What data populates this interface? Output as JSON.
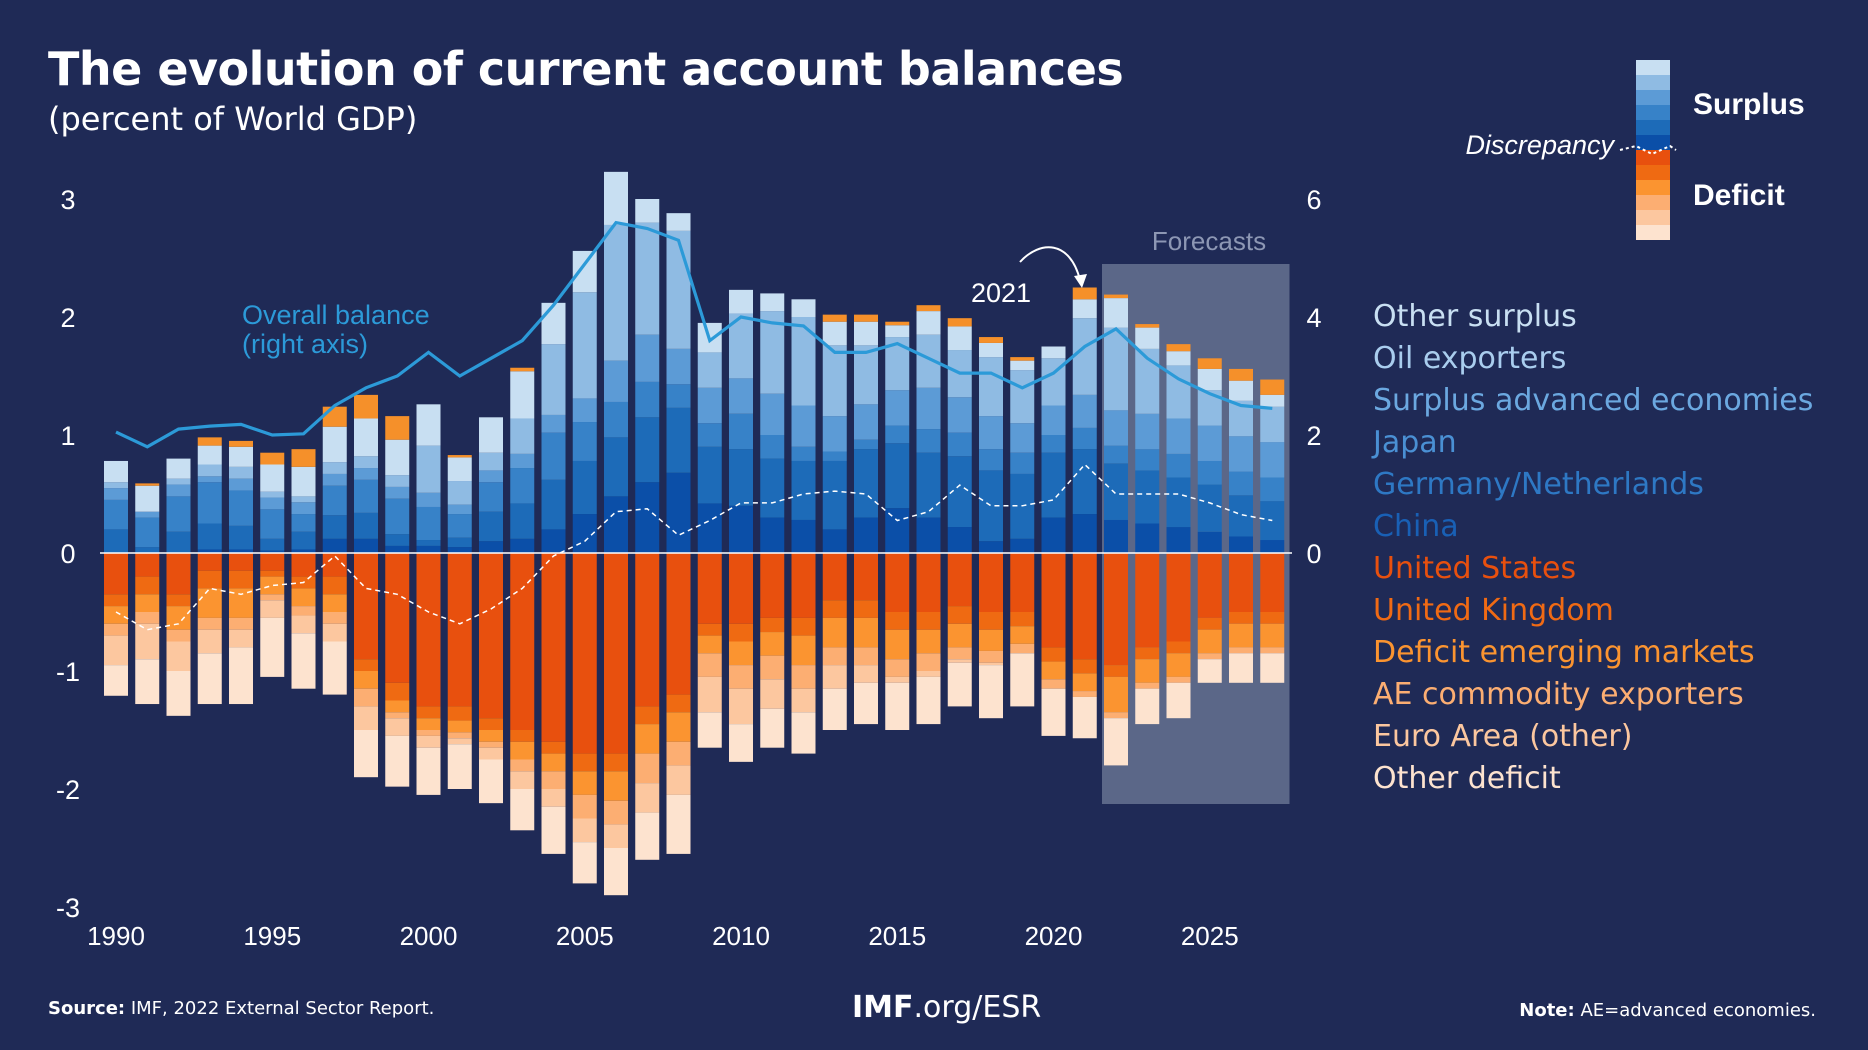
{
  "title": "The evolution of current account balances",
  "subtitle": "(percent of World GDP)",
  "source_label": "Source:",
  "source_text": " IMF, 2022 External Sector Report.",
  "site_bold": "IMF",
  "site_rest": ".org/ESR",
  "note_label": "Note:",
  "note_text": " AE=advanced economies.",
  "key": {
    "surplus": "Surplus",
    "deficit": "Deficit",
    "discrepancy": "Discrepancy"
  },
  "annotations": {
    "overall_balance": [
      "Overall balance",
      "(right axis)"
    ],
    "forecasts": "Forecasts",
    "year_2021": "2021"
  },
  "colors": {
    "background": "#1f2a56",
    "overall_balance_line": "#2c9ad8",
    "forecast_shade": "#5b6788"
  },
  "chart_data": {
    "type": "bar",
    "stacked": true,
    "x": [
      1990,
      1991,
      1992,
      1993,
      1994,
      1995,
      1996,
      1997,
      1998,
      1999,
      2000,
      2001,
      2002,
      2003,
      2004,
      2005,
      2006,
      2007,
      2008,
      2009,
      2010,
      2011,
      2012,
      2013,
      2014,
      2015,
      2016,
      2017,
      2018,
      2019,
      2020,
      2021,
      2022,
      2023,
      2024,
      2025,
      2026,
      2027
    ],
    "x_ticks": [
      1990,
      1995,
      2000,
      2005,
      2010,
      2015,
      2020,
      2025
    ],
    "forecast_start": 2022,
    "y_left": {
      "ticks": [
        -3,
        -2,
        -1,
        0,
        1,
        2,
        3
      ],
      "range": [
        -3,
        3
      ]
    },
    "y_right": {
      "ticks": [
        0,
        2,
        4,
        6
      ],
      "range": [
        -6,
        6
      ],
      "label": "right axis"
    },
    "series": [
      {
        "name": "China",
        "group": "surplus",
        "color": "#0b4fa8",
        "values": [
          0,
          0,
          0,
          0.03,
          0.03,
          0.02,
          0.03,
          0.12,
          0.12,
          0.06,
          0.06,
          0.05,
          0.1,
          0.12,
          0.2,
          0.33,
          0.48,
          0.6,
          0.68,
          0.42,
          0.4,
          0.3,
          0.28,
          0.2,
          0.3,
          0.38,
          0.3,
          0.22,
          0.1,
          0.12,
          0.3,
          0.33,
          0.28,
          0.25,
          0.22,
          0.18,
          0.14,
          0.11
        ]
      },
      {
        "name": "Germany/Netherlands",
        "group": "surplus",
        "color": "#1d6bb8",
        "values": [
          0.2,
          0.05,
          0.18,
          0.22,
          0.2,
          0.1,
          0.15,
          0.2,
          0.22,
          0.1,
          0.05,
          0.08,
          0.25,
          0.3,
          0.42,
          0.45,
          0.5,
          0.55,
          0.55,
          0.48,
          0.48,
          0.5,
          0.5,
          0.58,
          0.58,
          0.55,
          0.55,
          0.6,
          0.6,
          0.55,
          0.55,
          0.55,
          0.48,
          0.45,
          0.42,
          0.4,
          0.35,
          0.33
        ]
      },
      {
        "name": "Japan",
        "group": "surplus",
        "color": "#3782c8",
        "values": [
          0.25,
          0.25,
          0.3,
          0.35,
          0.3,
          0.25,
          0.15,
          0.25,
          0.28,
          0.3,
          0.28,
          0.2,
          0.25,
          0.3,
          0.4,
          0.33,
          0.3,
          0.3,
          0.2,
          0.2,
          0.3,
          0.2,
          0.12,
          0.08,
          0.08,
          0.15,
          0.2,
          0.2,
          0.18,
          0.18,
          0.15,
          0.18,
          0.15,
          0.18,
          0.2,
          0.2,
          0.2,
          0.2
        ]
      },
      {
        "name": "Surplus advanced economies",
        "group": "surplus",
        "color": "#5c9bd6",
        "values": [
          0.1,
          0.05,
          0.1,
          0.05,
          0.1,
          0.1,
          0.1,
          0.1,
          0.1,
          0.1,
          0.12,
          0.08,
          0.1,
          0.12,
          0.15,
          0.2,
          0.35,
          0.4,
          0.3,
          0.3,
          0.3,
          0.35,
          0.35,
          0.3,
          0.3,
          0.3,
          0.35,
          0.3,
          0.28,
          0.25,
          0.25,
          0.28,
          0.3,
          0.3,
          0.3,
          0.3,
          0.3,
          0.3
        ]
      },
      {
        "name": "Oil exporters",
        "group": "surplus",
        "color": "#8fbbe3",
        "values": [
          0.05,
          0,
          0.05,
          0.1,
          0.1,
          0.05,
          0.05,
          0.1,
          0.1,
          0.1,
          0.4,
          0.2,
          0.15,
          0.3,
          0.6,
          0.9,
          1.15,
          0.95,
          1,
          0.3,
          0.55,
          0.7,
          0.75,
          0.6,
          0.5,
          0.45,
          0.45,
          0.4,
          0.5,
          0.45,
          0.4,
          0.65,
          0.7,
          0.55,
          0.45,
          0.3,
          0.3,
          0.3
        ]
      },
      {
        "name": "Other surplus",
        "group": "surplus",
        "color": "#c8dff2",
        "values": [
          0.18,
          0.22,
          0.17,
          0.16,
          0.17,
          0.23,
          0.25,
          0.3,
          0.32,
          0.3,
          0.35,
          0.2,
          0.3,
          0.4,
          0.35,
          0.35,
          0.45,
          0.2,
          0.15,
          0.25,
          0.2,
          0.15,
          0.15,
          0.2,
          0.2,
          0.1,
          0.2,
          0.2,
          0.12,
          0.08,
          0.1,
          0.16,
          0.25,
          0.18,
          0.12,
          0.18,
          0.17,
          0.1
        ]
      },
      {
        "name": "Discrepancy",
        "group": "gap",
        "color": "#f5902a",
        "values": [
          0,
          0.02,
          0,
          0.07,
          0.05,
          0.1,
          0.15,
          0.17,
          0.2,
          0.2,
          0,
          0.02,
          0,
          0.03,
          0,
          0,
          0,
          0,
          0,
          0,
          0,
          0,
          0,
          0.06,
          0.06,
          0.03,
          0.05,
          0.07,
          0.05,
          0.03,
          0,
          0.1,
          0.03,
          0.03,
          0.06,
          0.09,
          0.1,
          0.13
        ]
      },
      {
        "name": "United States",
        "group": "deficit",
        "color": "#e8500e",
        "values": [
          -0.35,
          -0.2,
          -0.35,
          -0.15,
          -0.15,
          -0.15,
          -0.2,
          -0.2,
          -0.9,
          -1.1,
          -1.3,
          -1.3,
          -1.4,
          -1.5,
          -1.6,
          -1.7,
          -1.7,
          -1.3,
          -1.2,
          -0.6,
          -0.6,
          -0.55,
          -0.55,
          -0.4,
          -0.4,
          -0.5,
          -0.5,
          -0.45,
          -0.5,
          -0.5,
          -0.8,
          -0.9,
          -0.95,
          -0.8,
          -0.75,
          -0.55,
          -0.5,
          -0.5
        ]
      },
      {
        "name": "United Kingdom",
        "group": "deficit",
        "color": "#ef6a12",
        "values": [
          -0.1,
          -0.15,
          -0.1,
          -0.15,
          -0.15,
          -0.05,
          -0.1,
          -0.15,
          -0.1,
          -0.15,
          -0.1,
          -0.12,
          -0.1,
          -0.1,
          -0.1,
          -0.15,
          -0.15,
          -0.15,
          -0.15,
          -0.1,
          -0.15,
          -0.12,
          -0.15,
          -0.15,
          -0.15,
          -0.15,
          -0.15,
          -0.15,
          -0.15,
          -0.12,
          -0.12,
          -0.12,
          -0.1,
          -0.1,
          -0.1,
          -0.1,
          -0.1,
          -0.1
        ]
      },
      {
        "name": "Deficit emerging markets",
        "group": "deficit",
        "color": "#fb9430",
        "values": [
          -0.15,
          -0.15,
          -0.2,
          -0.25,
          -0.25,
          -0.15,
          -0.15,
          -0.15,
          -0.15,
          -0.1,
          -0.1,
          -0.1,
          -0.1,
          -0.15,
          -0.15,
          -0.2,
          -0.25,
          -0.25,
          -0.25,
          -0.15,
          -0.2,
          -0.2,
          -0.25,
          -0.25,
          -0.25,
          -0.25,
          -0.2,
          -0.2,
          -0.18,
          -0.15,
          -0.15,
          -0.15,
          -0.3,
          -0.2,
          -0.2,
          -0.2,
          -0.2,
          -0.2
        ]
      },
      {
        "name": "AE commodity exporters",
        "group": "deficit",
        "color": "#fcae72",
        "values": [
          -0.1,
          -0.1,
          -0.1,
          -0.1,
          -0.1,
          -0.05,
          -0.08,
          -0.1,
          -0.15,
          -0.05,
          -0.05,
          -0.05,
          -0.05,
          -0.1,
          -0.15,
          -0.2,
          -0.2,
          -0.25,
          -0.2,
          -0.2,
          -0.2,
          -0.2,
          -0.2,
          -0.15,
          -0.15,
          -0.15,
          -0.15,
          -0.1,
          -0.1,
          -0.08,
          -0.08,
          -0.05,
          -0.05,
          -0.05,
          -0.05,
          -0.05,
          -0.05,
          -0.05
        ]
      },
      {
        "name": "Euro Area (other)",
        "group": "deficit",
        "color": "#fcc79f",
        "values": [
          -0.25,
          -0.3,
          -0.25,
          -0.2,
          -0.15,
          -0.15,
          -0.15,
          -0.15,
          -0.2,
          -0.15,
          -0.1,
          -0.05,
          -0.1,
          -0.15,
          -0.15,
          -0.2,
          -0.2,
          -0.25,
          -0.25,
          -0.3,
          -0.3,
          -0.25,
          -0.2,
          -0.2,
          -0.15,
          -0.05,
          -0.05,
          -0.03,
          -0.02,
          0,
          0,
          0,
          0,
          0,
          0,
          0,
          0,
          0
        ]
      },
      {
        "name": "Other deficit",
        "group": "deficit",
        "color": "#fde3cf",
        "values": [
          -0.26,
          -0.38,
          -0.38,
          -0.43,
          -0.48,
          -0.5,
          -0.47,
          -0.45,
          -0.4,
          -0.43,
          -0.4,
          -0.38,
          -0.37,
          -0.35,
          -0.4,
          -0.35,
          -0.4,
          -0.4,
          -0.5,
          -0.3,
          -0.32,
          -0.33,
          -0.35,
          -0.35,
          -0.35,
          -0.4,
          -0.4,
          -0.37,
          -0.45,
          -0.45,
          -0.4,
          -0.35,
          -0.4,
          -0.3,
          -0.3,
          -0.2,
          -0.25,
          -0.25
        ]
      }
    ],
    "lines": [
      {
        "name": "Overall balance",
        "axis": "right",
        "style": "solid",
        "color": "#2c9ad8",
        "values": [
          2.05,
          1.8,
          2.1,
          2.15,
          2.18,
          2.0,
          2.02,
          2.5,
          2.8,
          3.0,
          3.4,
          3.0,
          3.3,
          3.6,
          4.2,
          4.9,
          5.6,
          5.5,
          5.3,
          3.6,
          4.0,
          3.9,
          3.85,
          3.4,
          3.4,
          3.55,
          3.3,
          3.05,
          3.05,
          2.8,
          3.05,
          3.5,
          3.8,
          3.3,
          2.95,
          2.7,
          2.5,
          2.45
        ]
      },
      {
        "name": "Discrepancy",
        "axis": "right",
        "style": "dashed",
        "color": "#ffffff",
        "values": [
          -1.0,
          -1.3,
          -1.2,
          -0.6,
          -0.7,
          -0.55,
          -0.5,
          -0.05,
          -0.6,
          -0.7,
          -1.0,
          -1.2,
          -0.95,
          -0.6,
          -0.05,
          0.2,
          0.7,
          0.75,
          0.3,
          0.55,
          0.85,
          0.85,
          1.0,
          1.05,
          1.0,
          0.55,
          0.7,
          1.15,
          0.8,
          0.8,
          0.9,
          1.5,
          1.0,
          1.0,
          1.0,
          0.85,
          0.65,
          0.55
        ]
      }
    ]
  }
}
